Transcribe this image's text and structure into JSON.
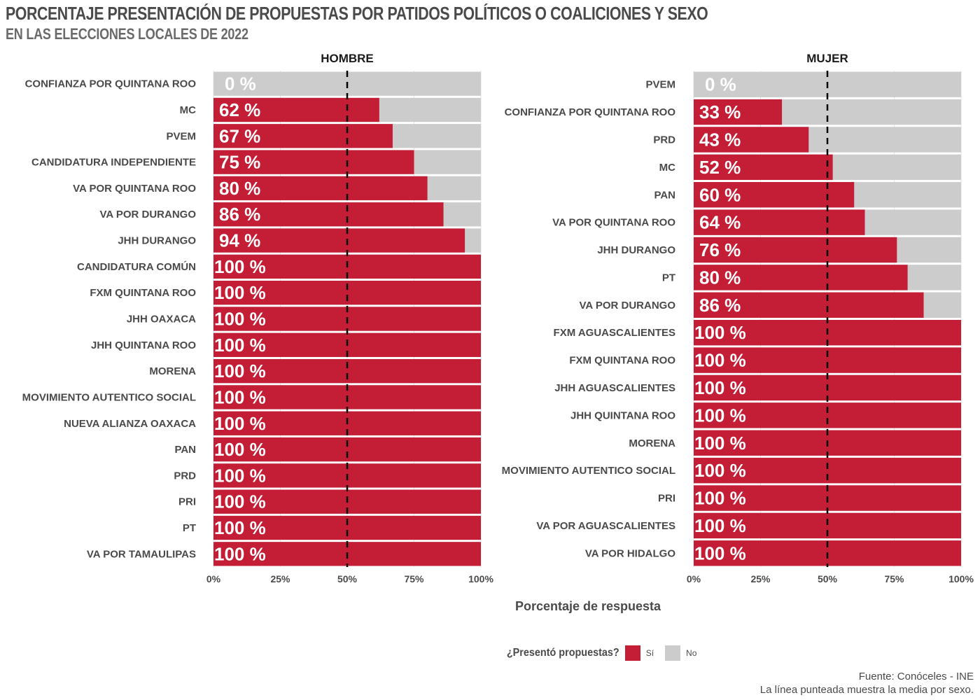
{
  "header": {
    "title": "PORCENTAJE PRESENTACIÓN DE PROPUESTAS POR PATIDOS POLÍTICOS O COALICIONES Y SEXO",
    "subtitle": "EN LAS ELECCIONES LOCALES DE 2022"
  },
  "chart_data": {
    "type": "bar",
    "orientation": "horizontal",
    "stacked": true,
    "x_ticks": [
      "0%",
      "25%",
      "50%",
      "75%",
      "100%"
    ],
    "xlim": [
      0,
      100
    ],
    "xlabel": "Porcentaje de respuesta",
    "reference_line": 50,
    "colors": {
      "si": "#c41e37",
      "no": "#cccccc"
    },
    "legend": {
      "title": "¿Presentó propuestas?",
      "placement": "bottom",
      "items": [
        {
          "label": "Sí",
          "color": "#c41e37"
        },
        {
          "label": "No",
          "color": "#cccccc"
        }
      ]
    },
    "facets": [
      {
        "name": "HOMBRE",
        "categories": [
          "CONFIANZA POR QUINTANA ROO",
          "MC",
          "PVEM",
          "CANDIDATURA INDEPENDIENTE",
          "VA POR QUINTANA ROO",
          "VA POR DURANGO",
          "JHH DURANGO",
          "CANDIDATURA COMÚN",
          "FXM QUINTANA ROO",
          "JHH OAXACA",
          "JHH QUINTANA ROO",
          "MORENA",
          "MOVIMIENTO AUTENTICO SOCIAL",
          "NUEVA ALIANZA OAXACA",
          "PAN",
          "PRD",
          "PRI",
          "PT",
          "VA POR TAMAULIPAS"
        ],
        "values": [
          0,
          62,
          67,
          75,
          80,
          86,
          94,
          100,
          100,
          100,
          100,
          100,
          100,
          100,
          100,
          100,
          100,
          100,
          100
        ],
        "labels": [
          "0 %",
          "62 %",
          "67 %",
          "75 %",
          "80 %",
          "86 %",
          "94 %",
          "100 %",
          "100 %",
          "100 %",
          "100 %",
          "100 %",
          "100 %",
          "100 %",
          "100 %",
          "100 %",
          "100 %",
          "100 %",
          "100 %"
        ]
      },
      {
        "name": "MUJER",
        "categories": [
          "PVEM",
          "CONFIANZA POR QUINTANA ROO",
          "PRD",
          "MC",
          "PAN",
          "VA POR QUINTANA ROO",
          "JHH DURANGO",
          "PT",
          "VA POR DURANGO",
          "FXM AGUASCALIENTES",
          "FXM QUINTANA ROO",
          "JHH AGUASCALIENTES",
          "JHH QUINTANA ROO",
          "MORENA",
          "MOVIMIENTO AUTENTICO SOCIAL",
          "PRI",
          "VA POR AGUASCALIENTES",
          "VA POR HIDALGO"
        ],
        "values": [
          0,
          33,
          43,
          52,
          60,
          64,
          76,
          80,
          86,
          100,
          100,
          100,
          100,
          100,
          100,
          100,
          100,
          100
        ],
        "labels": [
          "0 %",
          "33 %",
          "43 %",
          "52 %",
          "60 %",
          "64 %",
          "76 %",
          "80 %",
          "86 %",
          "100 %",
          "100 %",
          "100 %",
          "100 %",
          "100 %",
          "100 %",
          "100 %",
          "100 %",
          "100 %"
        ]
      }
    ]
  },
  "footer": {
    "source": "Fuente: Conóceles - INE",
    "note": "La línea punteada muestra la media por sexo."
  }
}
